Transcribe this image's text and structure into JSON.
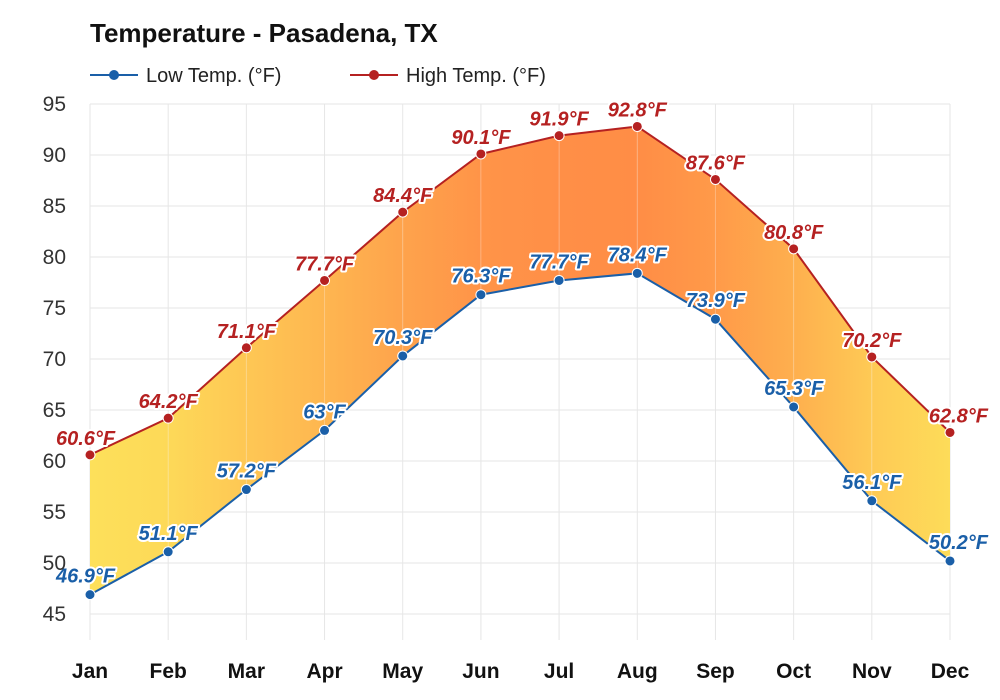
{
  "chart_data": {
    "type": "area",
    "title": "Temperature - Pasadena, TX",
    "categories": [
      "Jan",
      "Feb",
      "Mar",
      "Apr",
      "May",
      "Jun",
      "Jul",
      "Aug",
      "Sep",
      "Oct",
      "Nov",
      "Dec"
    ],
    "series": [
      {
        "name": "Low Temp. (°F)",
        "color": "#1a5fa8",
        "values": [
          46.9,
          51.1,
          57.2,
          63,
          70.3,
          76.3,
          77.7,
          78.4,
          73.9,
          65.3,
          56.1,
          50.2
        ],
        "labels": [
          "46.9°F",
          "51.1°F",
          "57.2°F",
          "63°F",
          "70.3°F",
          "76.3°F",
          "77.7°F",
          "78.4°F",
          "73.9°F",
          "65.3°F",
          "56.1°F",
          "50.2°F"
        ]
      },
      {
        "name": "High Temp. (°F)",
        "color": "#b52121",
        "values": [
          60.6,
          64.2,
          71.1,
          77.7,
          84.4,
          90.1,
          91.9,
          92.8,
          87.6,
          80.8,
          70.2,
          62.8
        ],
        "labels": [
          "60.6°F",
          "64.2°F",
          "71.1°F",
          "77.7°F",
          "84.4°F",
          "90.1°F",
          "91.9°F",
          "92.8°F",
          "87.6°F",
          "80.8°F",
          "70.2°F",
          "62.8°F"
        ]
      }
    ],
    "ylim": [
      45,
      95
    ],
    "yticks": [
      "45",
      "50",
      "55",
      "60",
      "65",
      "70",
      "75",
      "80",
      "85",
      "90",
      "95"
    ],
    "xlabel": "",
    "ylabel": "",
    "grid": true,
    "legend": "top-left",
    "fill_colors": {
      "cool": "#fde05a",
      "warm": "#ff8c46"
    }
  }
}
